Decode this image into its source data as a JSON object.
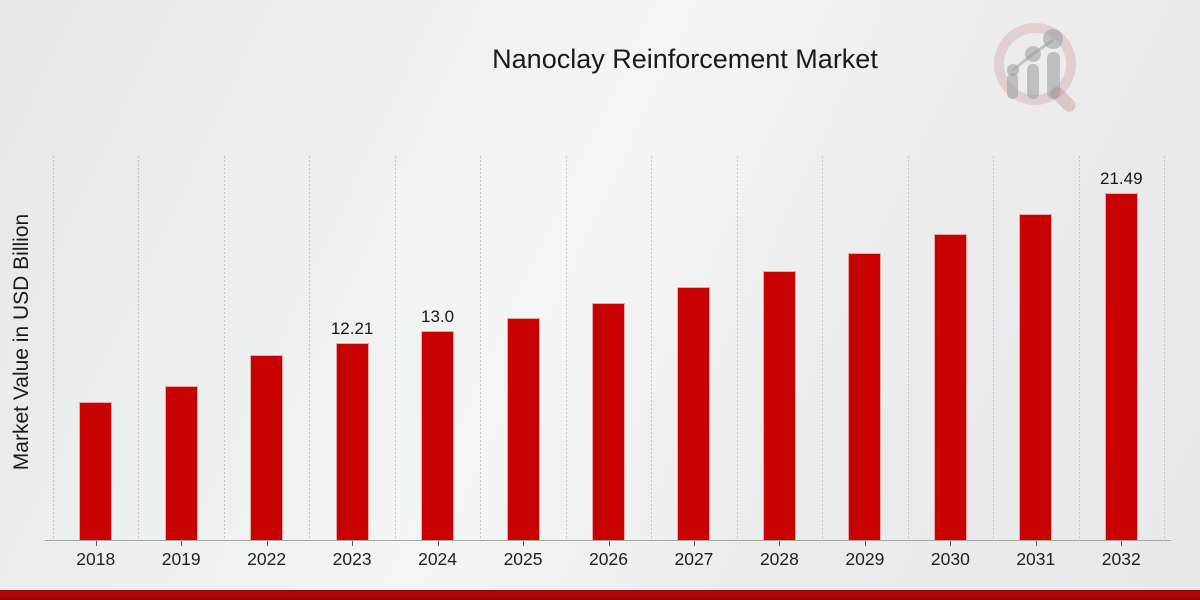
{
  "page": {
    "title": "Nanoclay Reinforcement Market"
  },
  "chart_data": {
    "type": "bar",
    "title": "Nanoclay Reinforcement Market",
    "ylabel": "Market Value in USD Billion",
    "xlabel": "",
    "categories": [
      "2018",
      "2019",
      "2022",
      "2023",
      "2024",
      "2025",
      "2026",
      "2027",
      "2028",
      "2029",
      "2030",
      "2031",
      "2032"
    ],
    "values": [
      8.6,
      9.6,
      11.5,
      12.21,
      13.0,
      13.8,
      14.7,
      15.7,
      16.7,
      17.8,
      19.0,
      20.2,
      21.49
    ],
    "value_labels": [
      "",
      "",
      "",
      "12.21",
      "13.0",
      "",
      "",
      "",
      "",
      "",
      "",
      "",
      "21.49"
    ],
    "ylim": [
      0,
      23.8
    ],
    "grid": "vertical-dotted",
    "legend": "none",
    "bar_color": "#c80202",
    "gridline_color": "#c3c6c6",
    "axis_color": "#a6a9a9"
  },
  "branding": {
    "logo_icon": "magnifier-bar-chart-watermark",
    "ribbon_color": "#b30505"
  }
}
